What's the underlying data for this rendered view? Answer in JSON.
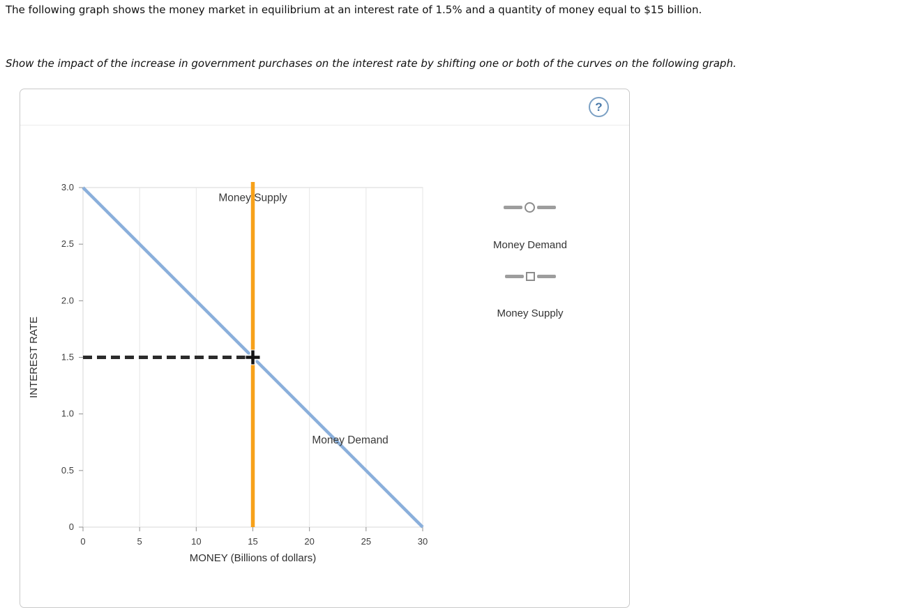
{
  "question": {
    "intro": "The following graph shows the money market in equilibrium at an interest rate of 1.5% and a quantity of money equal to $15 billion.",
    "instruction": "Show the impact of the increase in government purchases on the interest rate by shifting one or both of the curves on the following graph."
  },
  "panel": {
    "help_label": "?"
  },
  "chart_data": {
    "type": "line",
    "title": "",
    "xlabel": "MONEY (Billions of dollars)",
    "ylabel": "INTEREST RATE",
    "xlim": [
      0,
      30
    ],
    "ylim": [
      0,
      3
    ],
    "grid": "vertical",
    "x_ticks": [
      {
        "v": 0,
        "label": "0"
      },
      {
        "v": 5,
        "label": "5"
      },
      {
        "v": 10,
        "label": "10"
      },
      {
        "v": 15,
        "label": "15"
      },
      {
        "v": 20,
        "label": "20"
      },
      {
        "v": 25,
        "label": "25"
      },
      {
        "v": 30,
        "label": "30"
      }
    ],
    "y_ticks": [
      {
        "v": 0,
        "label": "0"
      },
      {
        "v": 0.5,
        "label": "0.5"
      },
      {
        "v": 1,
        "label": "1.0"
      },
      {
        "v": 1.5,
        "label": "1.5"
      },
      {
        "v": 2,
        "label": "2.0"
      },
      {
        "v": 2.5,
        "label": "2.5"
      },
      {
        "v": 3,
        "label": "3.0"
      }
    ],
    "series": [
      {
        "name": "Money Demand",
        "kind": "line",
        "color": "#8aafdb",
        "width": 4.5,
        "points": [
          [
            0,
            3
          ],
          [
            30,
            0
          ]
        ],
        "interactable": true
      },
      {
        "name": "Money Supply",
        "kind": "vline",
        "color": "#f7a11a",
        "width": 5.5,
        "x": 15,
        "interactable": true
      }
    ],
    "reference_lines": [
      {
        "name": "equilibrium-interest-rate",
        "kind": "dashed-h",
        "color": "#2b2b2b",
        "width": 5,
        "y": 1.5,
        "x1": 0,
        "x2": 15
      }
    ],
    "markers": [
      {
        "name": "equilibrium-point",
        "shape": "cross",
        "x": 15,
        "y": 1.5,
        "color": "#141414"
      }
    ],
    "annotations": [
      {
        "text": "Money Supply",
        "x": 15,
        "y": 2.88
      },
      {
        "text": "Money Demand",
        "x": 23.6,
        "y": 0.74
      }
    ],
    "equilibrium": {
      "interest_rate_percent": 1.5,
      "quantity_billions": 15
    }
  },
  "palette": {
    "items": [
      {
        "label": "Money Demand",
        "marker": "circle"
      },
      {
        "label": "Money Supply",
        "marker": "square"
      }
    ]
  }
}
